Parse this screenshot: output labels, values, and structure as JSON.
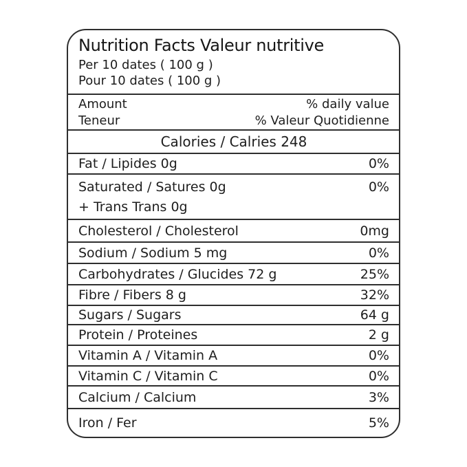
{
  "label": {
    "title": "Nutrition Facts Valeur nutritive",
    "serving_line_en": "Per 10 dates ( 100 g )",
    "serving_line_fr": "Pour 10 dates ( 100 g )",
    "amounts_header": {
      "amount_en": "Amount",
      "amount_fr": "Teneur",
      "daily_value_en": "% daily value",
      "daily_value_fr": "% Valeur Quotidienne"
    },
    "calories_line": "Calories / Calries 248",
    "rows": [
      {
        "name": "Fat / Lipides 0g",
        "value": "0%"
      },
      {
        "name": "Saturated / Satures 0g",
        "name2": "+ Trans Trans 0g",
        "value": "0%"
      },
      {
        "name": "Cholesterol / Cholesterol",
        "value": "0mg"
      },
      {
        "name": "Sodium / Sodium 5 mg",
        "value": "0%"
      },
      {
        "name": "Carbohydrates / Glucides 72 g",
        "value": "25%"
      },
      {
        "name": "Fibre / Fibers 8 g",
        "value": "32%"
      },
      {
        "name": "Sugars / Sugars",
        "value": "64 g"
      },
      {
        "name": "Protein / Proteines",
        "value": "2 g"
      },
      {
        "name": "Vitamin A / Vitamin A",
        "value": "0%"
      },
      {
        "name": "Vitamin C / Vitamin C",
        "value": "0%"
      },
      {
        "name": "Calcium / Calcium",
        "value": "3%"
      },
      {
        "name": "Iron / Fer",
        "value": "5%"
      }
    ],
    "colors": {
      "text": "#1d1d1d",
      "border": "#2e2e2e",
      "background": "#ffffff"
    }
  }
}
